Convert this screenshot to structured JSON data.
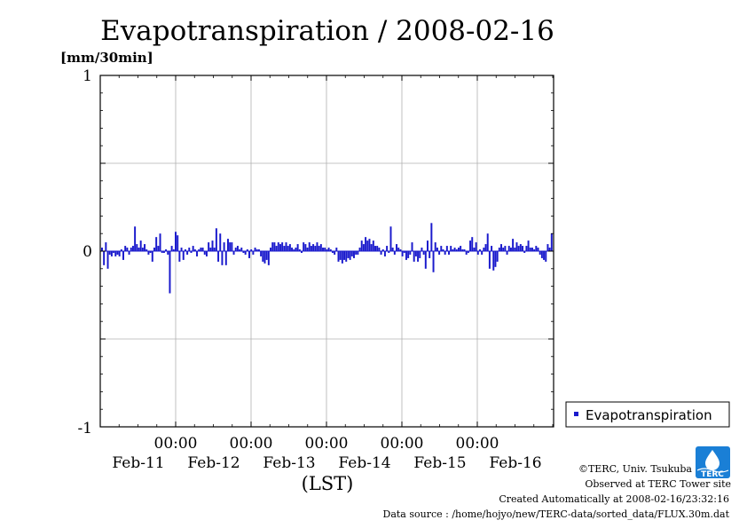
{
  "chart_data": {
    "type": "bar",
    "title": "Evapotranspiration / 2008-02-16",
    "ylabel": "[mm/30min]",
    "xlabel": "(LST)",
    "ylim": [
      -1,
      1
    ],
    "yticks": [
      "1",
      "0",
      "-1"
    ],
    "x_time_labels": [
      "00:00",
      "00:00",
      "00:00",
      "00:00",
      "00:00"
    ],
    "x_date_labels": [
      "Feb-11",
      "Feb-12",
      "Feb-13",
      "Feb-14",
      "Feb-15",
      "Feb-16"
    ],
    "grid": true,
    "legend_position": "right",
    "series": [
      {
        "name": "Evapotranspiration",
        "color": "#1a1acc",
        "values": [
          0.02,
          -0.08,
          0.05,
          -0.1,
          -0.02,
          -0.03,
          -0.01,
          -0.03,
          -0.02,
          -0.03,
          0.01,
          -0.05,
          0.03,
          0.02,
          -0.02,
          0.02,
          0.03,
          0.14,
          0.04,
          0.02,
          0.06,
          0.02,
          0.04,
          0.01,
          -0.02,
          -0.01,
          -0.06,
          0.02,
          0.08,
          0.03,
          0.1,
          -0.01,
          -0.01,
          0.01,
          -0.02,
          -0.24,
          0.03,
          0.01,
          0.11,
          0.09,
          -0.06,
          0.02,
          -0.05,
          0.01,
          -0.02,
          0.02,
          -0.01,
          0.03,
          0.01,
          -0.03,
          0.01,
          0.02,
          0.02,
          -0.02,
          -0.03,
          0.05,
          0.02,
          0.06,
          0.02,
          0.13,
          -0.06,
          0.1,
          -0.08,
          0.05,
          -0.08,
          0.07,
          0.05,
          0.05,
          -0.02,
          0.02,
          0.03,
          0.01,
          0.02,
          -0.01,
          -0.02,
          0.01,
          -0.04,
          0.01,
          -0.02,
          0.02,
          0.01,
          0.01,
          -0.03,
          -0.06,
          -0.07,
          -0.05,
          -0.08,
          0.02,
          0.05,
          0.05,
          0.03,
          0.05,
          0.04,
          0.05,
          0.03,
          0.05,
          0.03,
          0.04,
          0.02,
          0.01,
          0.02,
          0.04,
          0.01,
          -0.01,
          0.05,
          0.04,
          0.02,
          0.05,
          0.03,
          0.04,
          0.03,
          0.05,
          0.03,
          0.04,
          0.02,
          0.02,
          0.01,
          0.02,
          0.01,
          -0.01,
          -0.02,
          0.02,
          -0.06,
          -0.05,
          -0.07,
          -0.05,
          -0.06,
          -0.04,
          -0.05,
          -0.03,
          -0.04,
          -0.02,
          -0.02,
          0.02,
          0.06,
          0.04,
          0.08,
          0.06,
          0.07,
          0.04,
          0.06,
          0.03,
          0.03,
          0.02,
          -0.02,
          0.01,
          -0.03,
          0.03,
          -0.01,
          0.14,
          0.02,
          -0.02,
          0.04,
          0.02,
          0.01,
          -0.03,
          -0.01,
          -0.05,
          -0.04,
          -0.02,
          0.05,
          -0.06,
          -0.03,
          -0.06,
          -0.04,
          0.02,
          -0.02,
          -0.1,
          0.06,
          -0.04,
          0.16,
          -0.12,
          0.05,
          0.02,
          -0.02,
          0.03,
          0.01,
          -0.02,
          0.03,
          -0.02,
          0.03,
          0.01,
          0.02,
          0.01,
          0.02,
          0.03,
          0.01,
          0.01,
          -0.02,
          -0.01,
          0.06,
          0.08,
          0.02,
          0.05,
          -0.02,
          0.01,
          -0.02,
          0.02,
          0.04,
          0.1,
          -0.1,
          0.03,
          -0.11,
          -0.09,
          -0.06,
          0.02,
          0.04,
          0.02,
          0.03,
          -0.02,
          0.03,
          0.02,
          0.07,
          0.02,
          0.05,
          0.03,
          0.04,
          0.03,
          -0.01,
          0.03,
          0.06,
          0.02,
          0.02,
          0.01,
          0.03,
          0.02,
          -0.02,
          -0.04,
          -0.05,
          -0.06,
          0.04,
          0.02,
          0.1
        ]
      }
    ]
  },
  "legend": {
    "label": "Evapotranspiration"
  },
  "logo": {
    "text": "TERC"
  },
  "footer": {
    "copyright": "©TERC, Univ. Tsukuba",
    "observed": "Observed at TERC Tower site",
    "created": "Created Automatically at 2008-02-16/23:32:16",
    "source": "Data source : /home/hojyo/new/TERC-data/sorted_data/FLUX.30m.dat"
  }
}
